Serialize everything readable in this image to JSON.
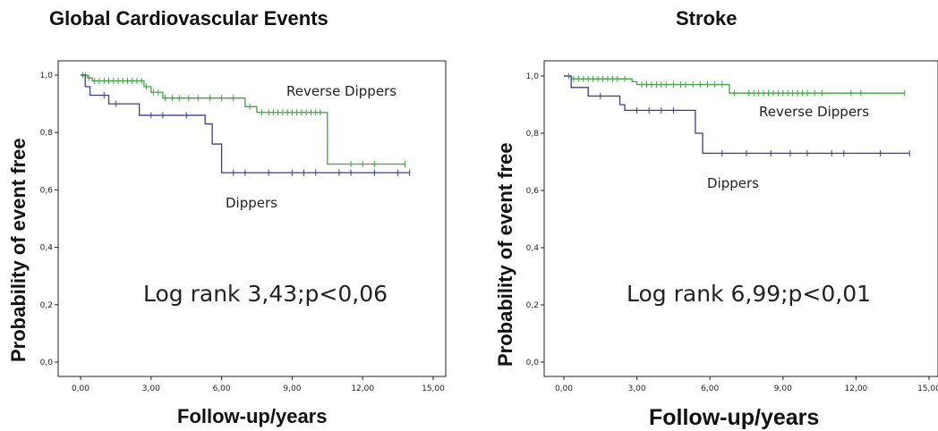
{
  "chart_data": [
    {
      "type": "line",
      "title": "Global Cardiovascular Events",
      "xlabel": "Follow-up/years",
      "ylabel": "Probability of event free",
      "xlim": [
        0,
        15
      ],
      "ylim": [
        0,
        1
      ],
      "x_ticks": [
        "0,00",
        "3,00",
        "6,00",
        "9,00",
        "12,00",
        "15,00"
      ],
      "y_ticks": [
        "0,0",
        "0,2",
        "0,4",
        "0,6",
        "0,8",
        "1,0"
      ],
      "grid": false,
      "annotation": "Log rank 3,43;p<0,06",
      "series": [
        {
          "name": "Reverse Dippers",
          "color": "#3fa33f",
          "steps": [
            [
              0,
              1.0
            ],
            [
              0.3,
              0.99
            ],
            [
              0.5,
              0.98
            ],
            [
              2.7,
              0.96
            ],
            [
              3.0,
              0.94
            ],
            [
              3.5,
              0.92
            ],
            [
              7.0,
              0.89
            ],
            [
              7.5,
              0.87
            ],
            [
              10.5,
              0.87
            ],
            [
              10.5,
              0.69
            ],
            [
              13.8,
              0.69
            ]
          ],
          "censor_x": [
            0.1,
            0.2,
            0.35,
            0.6,
            0.8,
            1.0,
            1.2,
            1.4,
            1.6,
            1.8,
            2.0,
            2.2,
            2.4,
            2.6,
            2.8,
            3.1,
            3.3,
            3.6,
            3.9,
            4.2,
            4.6,
            5.0,
            5.5,
            6.0,
            6.5,
            7.2,
            7.7,
            8.0,
            8.2,
            8.4,
            8.6,
            8.8,
            9.0,
            9.2,
            9.4,
            9.6,
            9.8,
            10.0,
            10.2,
            11.5,
            12.0,
            12.5,
            13.8
          ]
        },
        {
          "name": "Dippers",
          "color": "#3a3f8c",
          "steps": [
            [
              0,
              1.0
            ],
            [
              0.2,
              0.96
            ],
            [
              0.4,
              0.93
            ],
            [
              1.2,
              0.9
            ],
            [
              2.5,
              0.86
            ],
            [
              5.3,
              0.83
            ],
            [
              5.6,
              0.76
            ],
            [
              6.0,
              0.66
            ],
            [
              14.0,
              0.66
            ]
          ],
          "censor_x": [
            1.0,
            1.5,
            3.0,
            3.5,
            4.5,
            6.5,
            7.0,
            8.0,
            9.0,
            9.5,
            10.0,
            11.0,
            11.5,
            12.5,
            13.5,
            14.0
          ]
        }
      ]
    },
    {
      "type": "line",
      "title": "Stroke",
      "xlabel": "Follow-up/years",
      "ylabel": "Probability of event free",
      "xlim": [
        0,
        15
      ],
      "ylim": [
        0,
        1
      ],
      "x_ticks": [
        "0,00",
        "3,00",
        "6,00",
        "9,00",
        "12,00",
        "15,00"
      ],
      "y_ticks": [
        "0,0",
        "0,2",
        "0,4",
        "0,6",
        "0,8",
        "1,0"
      ],
      "grid": false,
      "annotation": "Log rank 6,99;p<0,01",
      "series": [
        {
          "name": "Reverse Dippers",
          "color": "#3fa33f",
          "steps": [
            [
              0,
              1.0
            ],
            [
              0.3,
              0.99
            ],
            [
              2.8,
              0.98
            ],
            [
              3.0,
              0.97
            ],
            [
              6.8,
              0.94
            ],
            [
              14.0,
              0.94
            ]
          ],
          "censor_x": [
            0.2,
            0.4,
            0.6,
            0.8,
            1.0,
            1.2,
            1.4,
            1.6,
            1.8,
            2.0,
            2.2,
            2.5,
            3.2,
            3.4,
            3.6,
            3.8,
            4.0,
            4.2,
            4.5,
            4.8,
            5.0,
            5.3,
            5.6,
            5.9,
            6.2,
            6.5,
            7.0,
            7.6,
            7.8,
            8.0,
            8.2,
            8.4,
            8.6,
            8.8,
            9.0,
            9.2,
            9.4,
            9.6,
            9.8,
            10.0,
            10.3,
            10.6,
            11.8,
            12.2,
            14.0
          ]
        },
        {
          "name": "Dippers",
          "color": "#3a3f8c",
          "steps": [
            [
              0,
              1.0
            ],
            [
              0.3,
              0.96
            ],
            [
              1.0,
              0.93
            ],
            [
              2.3,
              0.9
            ],
            [
              2.5,
              0.88
            ],
            [
              5.4,
              0.8
            ],
            [
              5.7,
              0.73
            ],
            [
              14.2,
              0.73
            ]
          ],
          "censor_x": [
            1.5,
            3.0,
            3.5,
            4.0,
            4.5,
            6.5,
            7.5,
            8.5,
            9.3,
            10.0,
            11.0,
            11.5,
            13.0,
            14.2
          ]
        }
      ]
    }
  ],
  "panels": [
    {
      "title": "Global Cardiovascular Events",
      "ylabel": "Probability of event free",
      "xlabel": "Follow-up/years"
    },
    {
      "title": "Stroke",
      "ylabel": "Probability of event free",
      "xlabel": "Follow-up/years"
    }
  ]
}
